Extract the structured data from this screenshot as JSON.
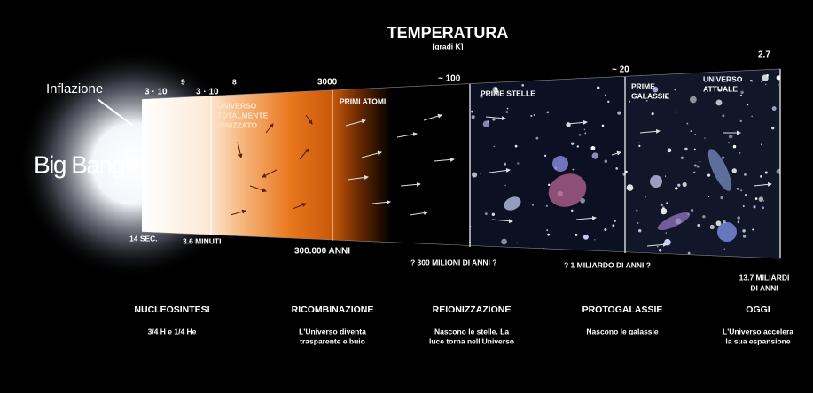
{
  "header": {
    "title": "TEMPERATURA",
    "subtitle": "[gradi K]"
  },
  "labels": {
    "inflation": "Inflazione",
    "big_bang": "Big Bang"
  },
  "temperatures": [
    {
      "base": "3 · 10",
      "exponent": "9"
    },
    {
      "base": "3 · 10",
      "exponent": "8"
    },
    {
      "text": "3000"
    },
    {
      "text": "~ 100"
    },
    {
      "text": "~ 20"
    },
    {
      "text": "2.7"
    }
  ],
  "regions": [
    [
      "UNIVERSO",
      "TOTALMENTE",
      "IONIZZATO"
    ],
    [
      "PRIMI ATOMI"
    ],
    [
      "PRIME STELLE"
    ],
    [
      "PRIME",
      "GALASSIE"
    ],
    [
      "UNIVERSO",
      "ATTUALE"
    ]
  ],
  "times": [
    [
      "14 SEC."
    ],
    [
      "3.6 MINUTI"
    ],
    [
      "300.000 ANNI"
    ],
    [
      "? 300 MILIONI DI ANNI ?"
    ],
    [
      "? 1 MILIARDO DI ANNI ?"
    ],
    [
      "13.7 MILIARDI",
      "DI ANNI"
    ]
  ],
  "epochs": [
    {
      "name": "NUCLEOSINTESI",
      "description": [
        "3/4 H e 1/4 He"
      ]
    },
    {
      "name": "RICOMBINAZIONE",
      "description": [
        "L'Universo diventa",
        "trasparente e buio"
      ]
    },
    {
      "name": "REIONIZZAZIONE",
      "description": [
        "Nascono le stelle. La",
        "luce torna nell'Universo"
      ]
    },
    {
      "name": "PROTOGALASSIE",
      "description": [
        "Nascono le galassie"
      ]
    },
    {
      "name": "OGGI",
      "description": [
        "L'Universo accelera",
        "la sua espansione"
      ]
    }
  ]
}
